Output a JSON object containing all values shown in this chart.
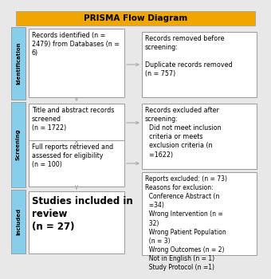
{
  "title": "PRISMA Flow Diagram",
  "title_bg": "#F0A500",
  "bg_color": "#E8E8E8",
  "box_face": "#FFFFFF",
  "box_edge": "#999999",
  "side_color": "#87CEEB",
  "arrow_color": "#AAAAAA",
  "left_boxes": [
    {
      "text": "Records identified (n =\n2479) from Databases (n =\n6)",
      "fontsize": 5.8
    },
    {
      "text": "Title and abstract records\nscreened\n(n = 1722)",
      "fontsize": 5.8
    },
    {
      "text": "Full reports retrieved and\nassessed for eligibility\n(n = 100)",
      "fontsize": 5.8
    },
    {
      "text": "Studies included in\nreview\n(n = 27)",
      "fontsize": 8.5,
      "bold": true
    }
  ],
  "right_boxes": [
    {
      "text": "Records removed before\nscreening:\n\nDuplicate records removed\n(n = 757)",
      "fontsize": 5.8
    },
    {
      "text": "Records excluded after\nscreening:\n  Did not meet inclusion\n  criteria or meets\n  exclusion criteria (n\n  =1622)",
      "fontsize": 5.8
    },
    {
      "text": "Reports excluded: (n = 73)\nReasons for exclusion:\n  Conference Abstract (n\n  =34)\n  Wrong Intervention (n =\n  32)\n  Wrong Patient Population\n  (n = 3)\n  Wrong Outcomes (n = 2)\n  Not in English (n = 1)\n  Study Protocol (n =1)",
      "fontsize": 5.5
    }
  ],
  "side_labels": [
    "Identification",
    "Screening",
    "Included"
  ]
}
